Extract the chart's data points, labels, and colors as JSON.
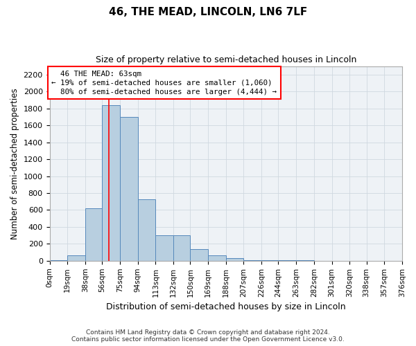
{
  "title": "46, THE MEAD, LINCOLN, LN6 7LF",
  "subtitle": "Size of property relative to semi-detached houses in Lincoln",
  "xlabel": "Distribution of semi-detached houses by size in Lincoln",
  "ylabel": "Number of semi-detached properties",
  "property_label": "46 THE MEAD: 63sqm",
  "smaller_pct": 19,
  "smaller_count": "1,060",
  "larger_pct": 80,
  "larger_count": "4,444",
  "bin_edges": [
    0,
    19,
    38,
    56,
    75,
    94,
    113,
    132,
    150,
    169,
    188,
    207,
    226,
    244,
    263,
    282,
    301,
    320,
    338,
    357,
    376
  ],
  "bin_heights": [
    10,
    60,
    620,
    1840,
    1700,
    730,
    300,
    300,
    140,
    65,
    35,
    10,
    5,
    5,
    3,
    2,
    2,
    1,
    1,
    1
  ],
  "bar_color": "#b8cfe0",
  "bar_edge_color": "#5588bb",
  "red_line_x": 63,
  "grid_color": "#d0d8e0",
  "background_color": "#eef2f6",
  "footer_line1": "Contains HM Land Registry data © Crown copyright and database right 2024.",
  "footer_line2": "Contains public sector information licensed under the Open Government Licence v3.0.",
  "ylim": [
    0,
    2300
  ],
  "yticks": [
    0,
    200,
    400,
    600,
    800,
    1000,
    1200,
    1400,
    1600,
    1800,
    2000,
    2200
  ]
}
